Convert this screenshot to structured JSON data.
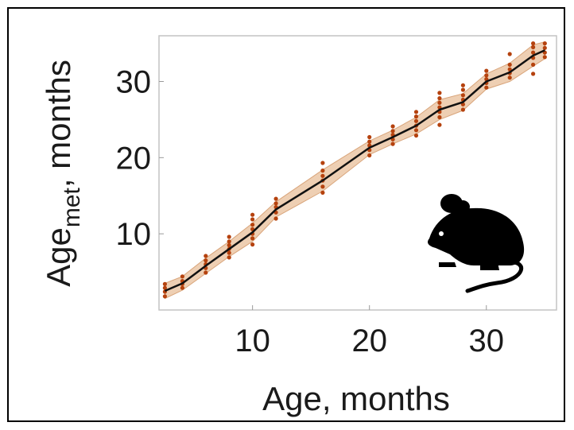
{
  "chart_data": {
    "type": "line",
    "xlabel": "Age, months",
    "ylabel": "Age",
    "ylabel_subscript": "met",
    "ylabel_suffix": ", months",
    "xlim": [
      2,
      36
    ],
    "ylim": [
      0,
      36
    ],
    "x_ticks": [
      10,
      20,
      30
    ],
    "y_ticks": [
      10,
      20,
      30
    ],
    "grid": false,
    "colors": {
      "line": "#111111",
      "band": "#e8bf9a",
      "points": "#b5420e",
      "axes": "#bfbfbf"
    },
    "icon": "mouse-silhouette-icon",
    "series": [
      {
        "type": "line",
        "x": [
          2.5,
          4,
          6,
          8,
          10,
          12,
          16,
          20,
          22,
          24,
          26,
          28,
          30,
          32,
          34,
          35
        ],
        "y": [
          2.5,
          3.5,
          5.8,
          8.0,
          10.2,
          13.2,
          17.0,
          21.3,
          22.7,
          24.2,
          26.3,
          27.3,
          30.0,
          31.2,
          33.4,
          34.1
        ],
        "band_lower": [
          1.5,
          2.6,
          4.8,
          7.0,
          9.0,
          12.2,
          15.6,
          20.4,
          21.8,
          23.1,
          25.0,
          26.2,
          29.0,
          30.0,
          32.0,
          33.0
        ],
        "band_upper": [
          3.5,
          4.4,
          6.8,
          9.0,
          11.4,
          14.2,
          18.4,
          22.2,
          23.6,
          25.3,
          27.6,
          28.4,
          31.0,
          32.4,
          34.8,
          35.2
        ]
      },
      {
        "type": "scatter",
        "x": [
          2.5,
          2.5,
          2.5,
          2.5,
          4,
          4,
          4,
          4,
          6,
          6,
          6,
          6,
          6,
          8,
          8,
          8,
          8,
          8,
          8,
          10,
          10,
          10,
          10,
          10,
          10,
          10,
          12,
          12,
          12,
          12,
          12,
          16,
          16,
          16,
          16,
          16,
          16,
          20,
          20,
          20,
          20,
          20,
          22,
          22,
          22,
          22,
          22,
          24,
          24,
          24,
          24,
          24,
          24,
          26,
          26,
          26,
          26,
          26,
          26,
          26,
          28,
          28,
          28,
          28,
          28,
          28,
          30,
          30,
          30,
          30,
          30,
          32,
          32,
          32,
          32,
          32,
          34,
          34,
          34,
          34,
          34,
          34,
          35,
          35,
          35,
          35
        ],
        "y": [
          1.8,
          2.4,
          2.9,
          3.4,
          2.9,
          3.4,
          3.8,
          4.4,
          4.9,
          5.5,
          6.0,
          6.5,
          7.1,
          6.9,
          7.5,
          8.0,
          8.5,
          9.0,
          9.6,
          8.6,
          9.4,
          10.0,
          10.6,
          11.2,
          11.9,
          12.5,
          12.0,
          12.8,
          13.5,
          14.0,
          14.6,
          15.4,
          16.2,
          17.0,
          17.6,
          18.3,
          19.3,
          20.3,
          21.0,
          21.6,
          22.1,
          22.7,
          21.8,
          22.4,
          23.0,
          23.5,
          24.1,
          22.9,
          23.6,
          24.2,
          24.8,
          25.4,
          26.0,
          24.3,
          25.3,
          26.0,
          26.6,
          27.2,
          27.8,
          28.5,
          26.3,
          27.0,
          27.6,
          28.2,
          28.9,
          29.5,
          29.2,
          29.8,
          30.3,
          30.8,
          31.4,
          30.5,
          31.1,
          31.6,
          32.2,
          33.6,
          31.0,
          32.2,
          33.1,
          33.8,
          34.5,
          35.0,
          33.2,
          33.8,
          34.4,
          35.0
        ]
      }
    ]
  }
}
